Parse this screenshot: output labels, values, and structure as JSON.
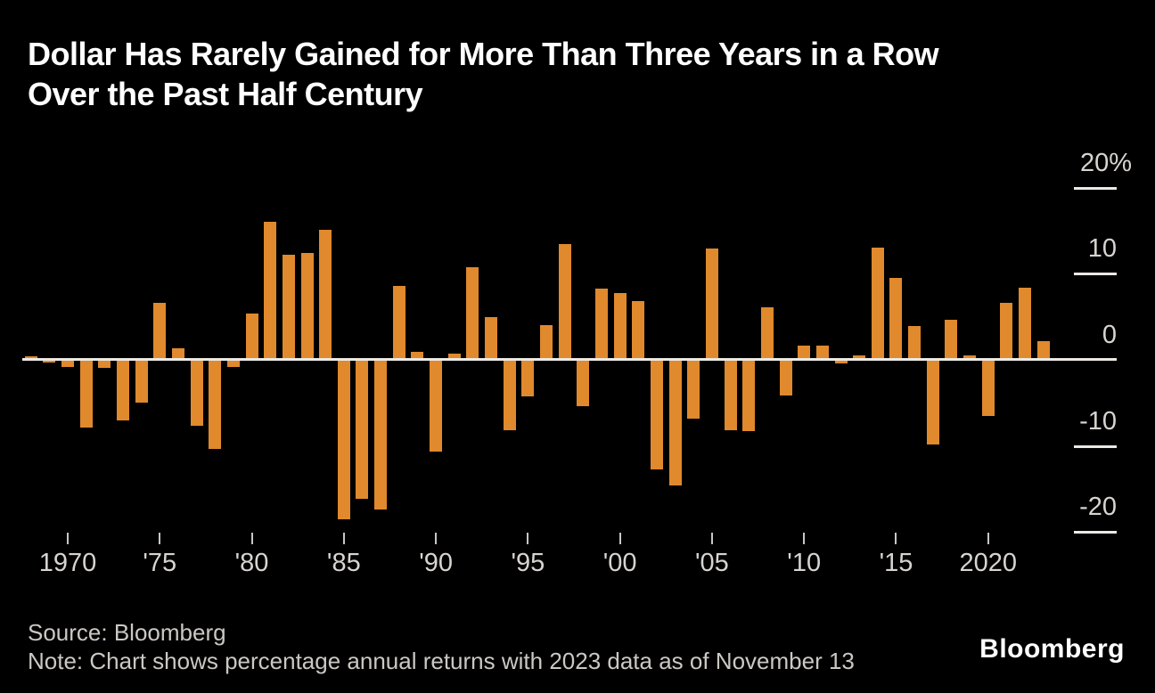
{
  "title": {
    "line1": "Dollar Has Rarely Gained for More Than Three Years in a Row",
    "line2": "Over the Past Half Century"
  },
  "footer": {
    "source": "Source: Bloomberg",
    "note": "Note: Chart shows percentage annual returns with 2023 data as of November 13",
    "logo": "Bloomberg"
  },
  "colors": {
    "background": "#000000",
    "bar": "#E0892D",
    "axis_line": "#ECE9E5",
    "tick": "#C9C6C2",
    "tick_label": "#D7D4D0",
    "title": "#FFFFFF",
    "footer_text": "#CBC8C4"
  },
  "chart_data": {
    "type": "bar",
    "title": "Dollar Has Rarely Gained for More Than Three Years in a Row Over the Past Half Century",
    "unit": "%",
    "x": [
      1968,
      1969,
      1970,
      1971,
      1972,
      1973,
      1974,
      1975,
      1976,
      1977,
      1978,
      1979,
      1980,
      1981,
      1982,
      1983,
      1984,
      1985,
      1986,
      1987,
      1988,
      1989,
      1990,
      1991,
      1992,
      1993,
      1994,
      1995,
      1996,
      1997,
      1998,
      1999,
      2000,
      2001,
      2002,
      2003,
      2004,
      2005,
      2006,
      2007,
      2008,
      2009,
      2010,
      2011,
      2012,
      2013,
      2014,
      2015,
      2016,
      2017,
      2018,
      2019,
      2020,
      2021,
      2022,
      2023
    ],
    "values": [
      0.3,
      -0.4,
      -0.9,
      -8.0,
      -1.0,
      -7.1,
      -5.1,
      6.5,
      1.2,
      -7.8,
      -10.4,
      -0.9,
      5.3,
      15.9,
      12.1,
      12.3,
      15.0,
      -18.6,
      -16.2,
      -17.5,
      8.5,
      0.8,
      -10.8,
      0.6,
      10.7,
      4.9,
      -8.3,
      -4.3,
      3.9,
      13.3,
      -5.5,
      8.2,
      7.7,
      6.7,
      -12.8,
      -14.7,
      -6.9,
      12.8,
      -8.3,
      -8.4,
      6.0,
      -4.2,
      1.5,
      1.5,
      -0.5,
      0.4,
      12.9,
      9.4,
      3.8,
      -9.9,
      4.5,
      0.4,
      -6.6,
      6.5,
      8.3,
      2.1
    ],
    "ylim": [
      -22,
      22
    ],
    "grid": false,
    "yaxis_side": "right",
    "yticks": [
      {
        "value": 20,
        "label": "20%"
      },
      {
        "value": 10,
        "label": "10"
      },
      {
        "value": 0,
        "label": "0"
      },
      {
        "value": -10,
        "label": "-10"
      },
      {
        "value": -20,
        "label": "-20"
      }
    ],
    "xticks": [
      {
        "value": 1970,
        "label": "1970"
      },
      {
        "value": 1975,
        "label": "'75"
      },
      {
        "value": 1980,
        "label": "'80"
      },
      {
        "value": 1985,
        "label": "'85"
      },
      {
        "value": 1990,
        "label": "'90"
      },
      {
        "value": 1995,
        "label": "'95"
      },
      {
        "value": 2000,
        "label": "'00"
      },
      {
        "value": 2005,
        "label": "'05"
      },
      {
        "value": 2010,
        "label": "'10"
      },
      {
        "value": 2015,
        "label": "'15"
      },
      {
        "value": 2020,
        "label": "2020"
      }
    ]
  }
}
